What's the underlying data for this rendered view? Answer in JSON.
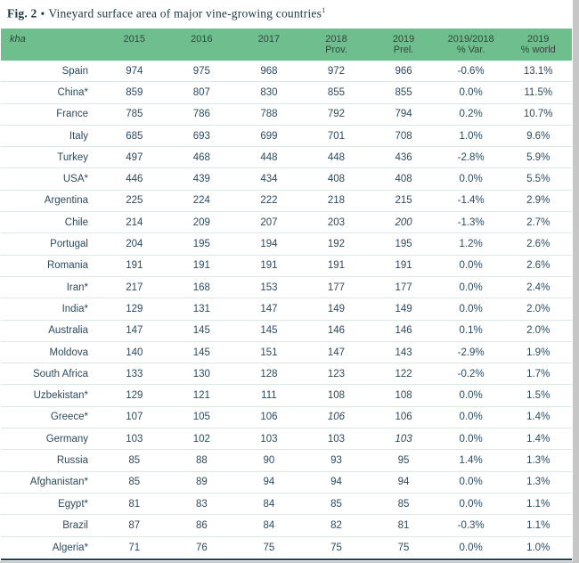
{
  "title": {
    "fig_label": "Fig. 2",
    "separator": "•",
    "text": "Vineyard surface area of major vine-growing countries",
    "footnote": "1"
  },
  "colors": {
    "header_background": "#6fbe8e",
    "row_divider": "#d7ecdf",
    "table_bottom_border": "#223c4f",
    "text": "#2d4a5e",
    "title_text": "#1d3644",
    "window_edge": "#c6c6c6"
  },
  "chart_data": {
    "type": "table",
    "title": "Vineyard surface area of major vine-growing countries",
    "unit_label": "kha",
    "columns": [
      {
        "lines": [
          "2015"
        ]
      },
      {
        "lines": [
          "2016"
        ]
      },
      {
        "lines": [
          "2017"
        ]
      },
      {
        "lines": [
          "2018",
          "Prov."
        ]
      },
      {
        "lines": [
          "2019",
          "Prel."
        ]
      },
      {
        "lines": [
          "2019/2018",
          "% Var."
        ]
      },
      {
        "lines": [
          "2019",
          "% world"
        ]
      }
    ],
    "rows": [
      {
        "country": "Spain",
        "values": [
          "974",
          "975",
          "968",
          "972",
          "966",
          "-0.6%",
          "13.1%"
        ]
      },
      {
        "country": "China*",
        "values": [
          "859",
          "807",
          "830",
          "855",
          "855",
          "0.0%",
          "11.5%"
        ]
      },
      {
        "country": "France",
        "values": [
          "785",
          "786",
          "788",
          "792",
          "794",
          "0.2%",
          "10.7%"
        ]
      },
      {
        "country": "Italy",
        "values": [
          "685",
          "693",
          "699",
          "701",
          "708",
          "1.0%",
          "9.6%"
        ]
      },
      {
        "country": "Turkey",
        "values": [
          "497",
          "468",
          "448",
          "448",
          "436",
          "-2.8%",
          "5.9%"
        ]
      },
      {
        "country": "USA*",
        "values": [
          "446",
          "439",
          "434",
          "408",
          "408",
          "0.0%",
          "5.5%"
        ]
      },
      {
        "country": "Argentina",
        "values": [
          "225",
          "224",
          "222",
          "218",
          "215",
          "-1.4%",
          "2.9%"
        ]
      },
      {
        "country": "Chile",
        "values": [
          "214",
          "209",
          "207",
          "203",
          "200",
          "-1.3%",
          "2.7%"
        ]
      },
      {
        "country": "Portugal",
        "values": [
          "204",
          "195",
          "194",
          "192",
          "195",
          "1.2%",
          "2.6%"
        ]
      },
      {
        "country": "Romania",
        "values": [
          "191",
          "191",
          "191",
          "191",
          "191",
          "0.0%",
          "2.6%"
        ]
      },
      {
        "country": "Iran*",
        "values": [
          "217",
          "168",
          "153",
          "177",
          "177",
          "0.0%",
          "2.4%"
        ]
      },
      {
        "country": "India*",
        "values": [
          "129",
          "131",
          "147",
          "149",
          "149",
          "0.0%",
          "2.0%"
        ]
      },
      {
        "country": "Australia",
        "values": [
          "147",
          "145",
          "145",
          "146",
          "146",
          "0.1%",
          "2.0%"
        ]
      },
      {
        "country": "Moldova",
        "values": [
          "140",
          "145",
          "151",
          "147",
          "143",
          "-2.9%",
          "1.9%"
        ]
      },
      {
        "country": "South Africa",
        "values": [
          "133",
          "130",
          "128",
          "123",
          "122",
          "-0.2%",
          "1.7%"
        ]
      },
      {
        "country": "Uzbekistan*",
        "values": [
          "129",
          "121",
          "111",
          "108",
          "108",
          "0.0%",
          "1.5%"
        ]
      },
      {
        "country": "Greece*",
        "values": [
          "107",
          "105",
          "106",
          "106",
          "106",
          "0.0%",
          "1.4%"
        ]
      },
      {
        "country": "Germany",
        "values": [
          "103",
          "102",
          "103",
          "103",
          "103",
          "0.0%",
          "1.4%"
        ]
      },
      {
        "country": "Russia",
        "values": [
          "85",
          "88",
          "90",
          "93",
          "95",
          "1.4%",
          "1.3%"
        ]
      },
      {
        "country": "Afghanistan*",
        "values": [
          "85",
          "89",
          "94",
          "94",
          "94",
          "0.0%",
          "1.3%"
        ]
      },
      {
        "country": "Egypt*",
        "values": [
          "81",
          "83",
          "84",
          "85",
          "85",
          "0.0%",
          "1.1%"
        ]
      },
      {
        "country": "Brazil",
        "values": [
          "87",
          "86",
          "84",
          "82",
          "81",
          "-0.3%",
          "1.1%"
        ]
      },
      {
        "country": "Algeria*",
        "values": [
          "71",
          "76",
          "75",
          "75",
          "75",
          "0.0%",
          "1.0%"
        ]
      }
    ],
    "italic_cells": [
      [
        7,
        4
      ],
      [
        16,
        3
      ],
      [
        17,
        4
      ]
    ]
  }
}
